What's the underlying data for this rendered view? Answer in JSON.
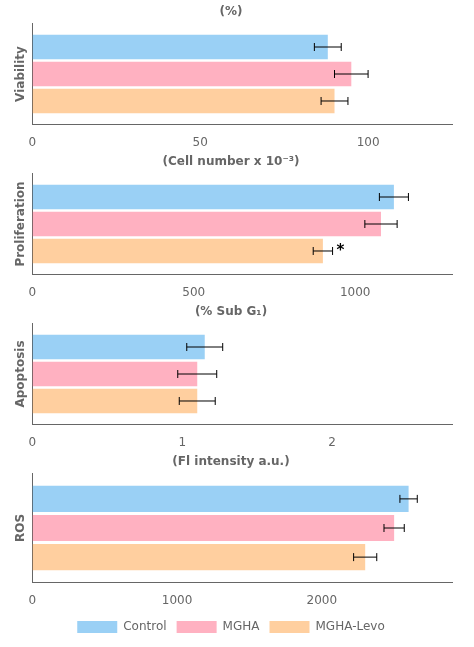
{
  "chart_data": [
    {
      "type": "bar",
      "orientation": "horizontal",
      "title": "(%)",
      "ylabel": "Viability",
      "categories": [
        null
      ],
      "series": [
        {
          "name": "Control",
          "values": [
            88
          ],
          "errors": [
            4
          ]
        },
        {
          "name": "MGHA",
          "values": [
            95
          ],
          "errors": [
            5
          ]
        },
        {
          "name": "MGHA-Levo",
          "values": [
            90
          ],
          "errors": [
            4
          ]
        }
      ],
      "xlim": [
        0,
        125
      ],
      "xticks": [
        0,
        50,
        100
      ],
      "grid": false,
      "tick_labels": "x"
    },
    {
      "type": "bar",
      "orientation": "horizontal",
      "title": "(Cell number x 10⁻³)",
      "ylabel": "Proliferation",
      "categories": [
        null
      ],
      "series": [
        {
          "name": "Control",
          "values": [
            1120
          ],
          "errors": [
            45
          ]
        },
        {
          "name": "MGHA",
          "values": [
            1080
          ],
          "errors": [
            50
          ]
        },
        {
          "name": "MGHA-Levo",
          "values": [
            900
          ],
          "errors": [
            30
          ]
        }
      ],
      "annotations": [
        {
          "text": "*",
          "series": "MGHA-Levo"
        }
      ],
      "xlim": [
        0,
        1300
      ],
      "xticks": [
        0,
        500,
        1000
      ],
      "grid": false,
      "tick_labels": "x"
    },
    {
      "type": "bar",
      "orientation": "horizontal",
      "title": "(% Sub G₁)",
      "ylabel": "Apoptosis",
      "categories": [
        null
      ],
      "series": [
        {
          "name": "Control",
          "values": [
            1.15
          ],
          "errors": [
            0.12
          ]
        },
        {
          "name": "MGHA",
          "values": [
            1.1
          ],
          "errors": [
            0.13
          ]
        },
        {
          "name": "MGHA-Levo",
          "values": [
            1.1
          ],
          "errors": [
            0.12
          ]
        }
      ],
      "xlim": [
        0,
        2.8
      ],
      "xticks": [
        0,
        1,
        2
      ],
      "grid": false,
      "tick_labels": "x"
    },
    {
      "type": "bar",
      "orientation": "horizontal",
      "title": "(Fl intensity a.u.)",
      "ylabel": "ROS",
      "categories": [
        null
      ],
      "series": [
        {
          "name": "Control",
          "values": [
            2600
          ],
          "errors": [
            60
          ]
        },
        {
          "name": "MGHA",
          "values": [
            2500
          ],
          "errors": [
            70
          ]
        },
        {
          "name": "MGHA-Levo",
          "values": [
            2300
          ],
          "errors": [
            80
          ]
        }
      ],
      "xlim": [
        0,
        2900
      ],
      "xticks": [
        0,
        1000,
        2000
      ],
      "grid": false,
      "tick_labels": "x",
      "legend": "bottom"
    }
  ]
}
